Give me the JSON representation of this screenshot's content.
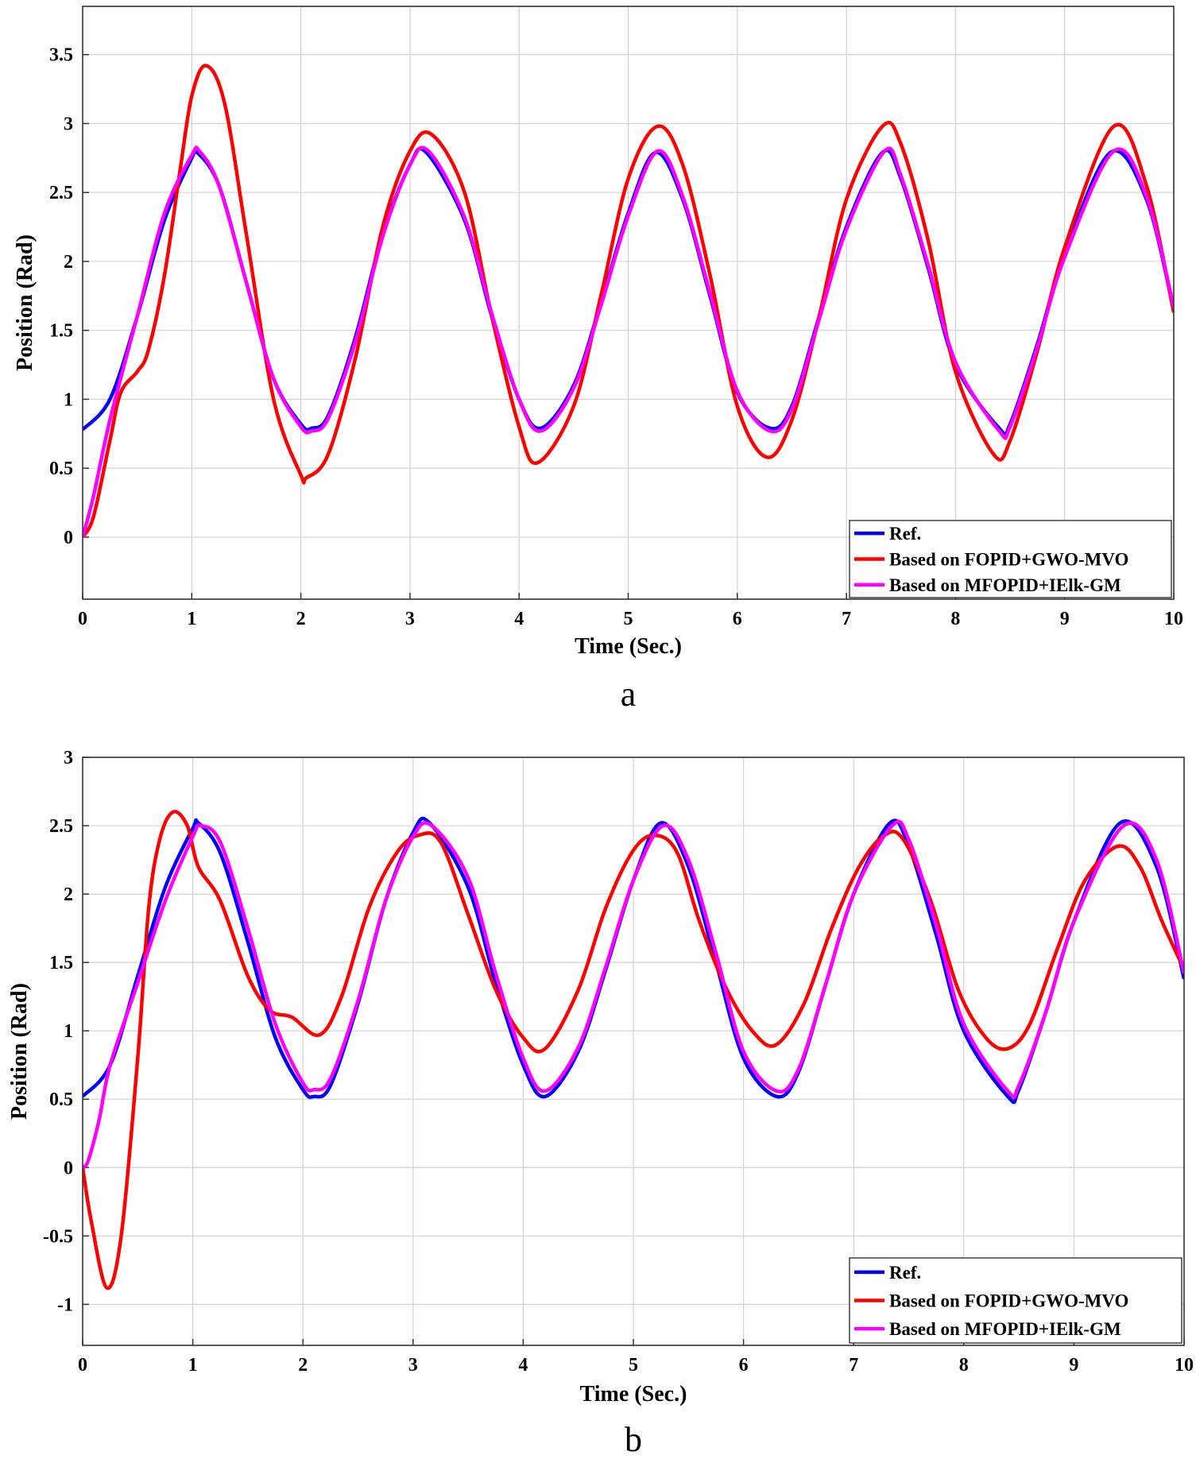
{
  "colors": {
    "ref": "#0000ff",
    "fopid": "#ff0000",
    "mfopid": "#ff00ff",
    "grid": "#d3d3d3",
    "axis": "#333333"
  },
  "chart_data": [
    {
      "type": "line",
      "panel_label": "a",
      "xlabel": "Time (Sec.)",
      "ylabel": "Position (Rad)",
      "xlim": [
        0,
        10
      ],
      "ylim": [
        -0.45,
        3.85
      ],
      "x_ticks": [
        "0",
        "1",
        "2",
        "3",
        "4",
        "5",
        "6",
        "7",
        "8",
        "9",
        "10"
      ],
      "y_ticks": [
        "0",
        "0.5",
        "1",
        "1.5",
        "2",
        "2.5",
        "3",
        "3.5"
      ],
      "grid": true,
      "legend_position": "bottom-right",
      "series": [
        {
          "name": "Ref.",
          "color": "#0000ff",
          "x": [
            0,
            0.25,
            0.5,
            0.75,
            1.0,
            1.05,
            1.25,
            1.5,
            1.75,
            2.0,
            2.1,
            2.25,
            2.5,
            2.75,
            3.0,
            3.15,
            3.5,
            3.75,
            4.0,
            4.2,
            4.5,
            4.75,
            5.0,
            5.25,
            5.5,
            5.75,
            6.0,
            6.3,
            6.5,
            6.75,
            7.0,
            7.33,
            7.5,
            7.75,
            8.0,
            8.4,
            8.5,
            8.75,
            9.0,
            9.42,
            9.75,
            10.0
          ],
          "y": [
            0.78,
            1.0,
            1.6,
            2.3,
            2.75,
            2.79,
            2.55,
            1.85,
            1.15,
            0.82,
            0.79,
            0.88,
            1.45,
            2.2,
            2.7,
            2.79,
            2.3,
            1.6,
            1.0,
            0.79,
            1.1,
            1.7,
            2.35,
            2.79,
            2.45,
            1.75,
            1.05,
            0.79,
            0.95,
            1.6,
            2.25,
            2.79,
            2.6,
            1.95,
            1.25,
            0.79,
            0.82,
            1.4,
            2.05,
            2.79,
            2.45,
            1.65
          ]
        },
        {
          "name": "Based on FOPID+GWO-MVO",
          "color": "#ff0000",
          "x": [
            0,
            0.1,
            0.25,
            0.35,
            0.5,
            0.6,
            0.75,
            0.9,
            1.0,
            1.13,
            1.3,
            1.5,
            1.75,
            2.0,
            2.05,
            2.25,
            2.5,
            2.75,
            3.0,
            3.2,
            3.5,
            3.75,
            4.0,
            4.17,
            4.5,
            4.75,
            5.0,
            5.27,
            5.5,
            5.75,
            6.0,
            6.27,
            6.5,
            6.75,
            7.0,
            7.33,
            7.5,
            7.75,
            8.0,
            8.35,
            8.5,
            8.75,
            9.0,
            9.45,
            9.75,
            10.0
          ],
          "y": [
            0.0,
            0.15,
            0.7,
            1.05,
            1.2,
            1.35,
            1.9,
            2.7,
            3.2,
            3.42,
            3.15,
            2.2,
            1.0,
            0.45,
            0.43,
            0.6,
            1.3,
            2.25,
            2.8,
            2.92,
            2.5,
            1.6,
            0.8,
            0.54,
            0.95,
            1.75,
            2.6,
            2.98,
            2.7,
            1.9,
            0.95,
            0.58,
            0.85,
            1.6,
            2.45,
            2.98,
            2.85,
            2.15,
            1.2,
            0.6,
            0.7,
            1.35,
            2.1,
            2.98,
            2.55,
            1.63
          ]
        },
        {
          "name": "Based on MFOPID+IElk-GM",
          "color": "#ff00ff",
          "x": [
            0,
            0.1,
            0.25,
            0.5,
            0.75,
            1.0,
            1.07,
            1.25,
            1.5,
            1.75,
            2.0,
            2.1,
            2.25,
            2.5,
            2.75,
            3.0,
            3.17,
            3.5,
            3.75,
            4.0,
            4.2,
            4.5,
            4.75,
            5.0,
            5.27,
            5.5,
            5.75,
            6.0,
            6.3,
            6.5,
            6.75,
            7.0,
            7.35,
            7.5,
            7.75,
            8.0,
            8.4,
            8.5,
            8.75,
            9.0,
            9.45,
            9.75,
            10.0
          ],
          "y": [
            0.0,
            0.3,
            0.85,
            1.6,
            2.35,
            2.77,
            2.8,
            2.55,
            1.85,
            1.15,
            0.8,
            0.77,
            0.86,
            1.42,
            2.18,
            2.7,
            2.8,
            2.32,
            1.62,
            1.0,
            0.77,
            1.08,
            1.68,
            2.33,
            2.8,
            2.47,
            1.77,
            1.06,
            0.77,
            0.93,
            1.58,
            2.23,
            2.8,
            2.62,
            1.97,
            1.27,
            0.77,
            0.8,
            1.38,
            2.03,
            2.8,
            2.47,
            1.67
          ]
        }
      ]
    },
    {
      "type": "line",
      "panel_label": "b",
      "xlabel": "Time (Sec.)",
      "ylabel": "Position (Rad)",
      "xlim": [
        0,
        10
      ],
      "ylim": [
        -1.3,
        3.0
      ],
      "x_ticks": [
        "0",
        "1",
        "2",
        "3",
        "4",
        "5",
        "6",
        "7",
        "8",
        "9",
        "10"
      ],
      "y_ticks": [
        "-1",
        "-0.5",
        "0",
        "0.5",
        "1",
        "1.5",
        "2",
        "2.5",
        "3"
      ],
      "grid": true,
      "legend_position": "bottom-right",
      "series": [
        {
          "name": "Ref.",
          "color": "#0000ff",
          "x": [
            0,
            0.25,
            0.5,
            0.75,
            1.0,
            1.05,
            1.25,
            1.5,
            1.75,
            2.0,
            2.1,
            2.25,
            2.5,
            2.75,
            3.0,
            3.15,
            3.5,
            3.75,
            4.0,
            4.2,
            4.5,
            4.75,
            5.0,
            5.25,
            5.5,
            5.75,
            6.0,
            6.3,
            6.5,
            6.75,
            7.0,
            7.33,
            7.5,
            7.75,
            8.0,
            8.4,
            8.5,
            8.75,
            9.0,
            9.42,
            9.75,
            10.0
          ],
          "y": [
            0.52,
            0.75,
            1.4,
            2.05,
            2.48,
            2.52,
            2.3,
            1.65,
            0.95,
            0.57,
            0.52,
            0.6,
            1.2,
            1.95,
            2.45,
            2.52,
            2.05,
            1.35,
            0.75,
            0.52,
            0.85,
            1.45,
            2.1,
            2.52,
            2.2,
            1.5,
            0.8,
            0.52,
            0.7,
            1.35,
            2.0,
            2.52,
            2.35,
            1.7,
            1.0,
            0.52,
            0.57,
            1.15,
            1.8,
            2.52,
            2.2,
            1.38
          ]
        },
        {
          "name": "Based on FOPID+GWO-MVO",
          "color": "#ff0000",
          "x": [
            0,
            0.08,
            0.22,
            0.35,
            0.5,
            0.6,
            0.7,
            0.82,
            0.95,
            1.05,
            1.25,
            1.5,
            1.7,
            1.9,
            2.15,
            2.35,
            2.6,
            2.85,
            3.05,
            3.25,
            3.5,
            3.75,
            4.0,
            4.2,
            4.5,
            4.75,
            5.0,
            5.2,
            5.4,
            5.6,
            5.85,
            6.1,
            6.3,
            6.55,
            6.8,
            7.05,
            7.28,
            7.45,
            7.7,
            7.95,
            8.2,
            8.4,
            8.6,
            8.85,
            9.1,
            9.4,
            9.6,
            9.8,
            10.0
          ],
          "y": [
            0.0,
            -0.4,
            -0.88,
            -0.5,
            0.8,
            1.9,
            2.4,
            2.6,
            2.5,
            2.2,
            1.95,
            1.4,
            1.15,
            1.1,
            0.97,
            1.25,
            1.9,
            2.3,
            2.43,
            2.38,
            1.85,
            1.3,
            0.95,
            0.87,
            1.3,
            1.9,
            2.32,
            2.43,
            2.3,
            1.8,
            1.3,
            0.98,
            0.9,
            1.2,
            1.75,
            2.2,
            2.43,
            2.4,
            1.95,
            1.3,
            0.95,
            0.87,
            1.05,
            1.6,
            2.1,
            2.35,
            2.2,
            1.8,
            1.45
          ]
        },
        {
          "name": "Based on MFOPID+IElk-GM",
          "color": "#ff00ff",
          "x": [
            0,
            0.05,
            0.15,
            0.25,
            0.5,
            0.75,
            1.0,
            1.07,
            1.25,
            1.5,
            1.75,
            2.0,
            2.1,
            2.25,
            2.5,
            2.75,
            3.0,
            3.17,
            3.5,
            3.75,
            4.0,
            4.2,
            4.5,
            4.75,
            5.0,
            5.27,
            5.5,
            5.75,
            6.0,
            6.3,
            6.5,
            6.75,
            7.0,
            7.35,
            7.5,
            7.75,
            8.0,
            8.4,
            8.5,
            8.75,
            9.0,
            9.45,
            9.75,
            10.0
          ],
          "y": [
            0.0,
            0.05,
            0.35,
            0.75,
            1.35,
            1.95,
            2.42,
            2.5,
            2.38,
            1.75,
            1.05,
            0.62,
            0.57,
            0.65,
            1.22,
            1.95,
            2.42,
            2.5,
            2.12,
            1.42,
            0.8,
            0.56,
            0.88,
            1.47,
            2.1,
            2.5,
            2.25,
            1.57,
            0.85,
            0.56,
            0.72,
            1.35,
            2.0,
            2.5,
            2.4,
            1.77,
            1.05,
            0.56,
            0.6,
            1.15,
            1.8,
            2.5,
            2.25,
            1.42
          ]
        }
      ]
    }
  ]
}
